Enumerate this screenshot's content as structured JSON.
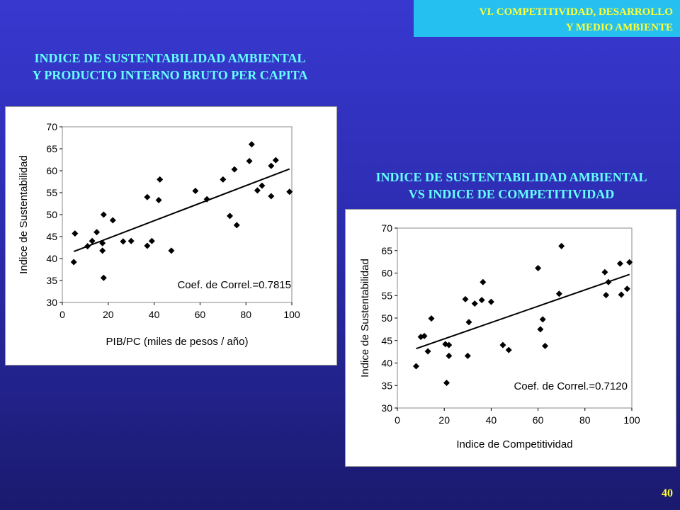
{
  "header": {
    "section_line1": "VI. COMPETITIVIDAD, DESARROLLO",
    "section_line2": "Y MEDIO AMBIENTE"
  },
  "heading_left": {
    "line1": "INDICE DE SUSTENTABILIDAD AMBIENTAL",
    "line2": "Y PRODUCTO INTERNO BRUTO PER CAPITA"
  },
  "heading_right": {
    "line1": "INDICE DE SUSTENTABILIDAD AMBIENTAL",
    "line2": "VS  INDICE DE COMPETITIVIDAD"
  },
  "page_number": "40",
  "colors": {
    "background": "#2c2cb0",
    "heading": "#66ffff",
    "accent": "#ffff33",
    "corner_box": "#26c0f0"
  },
  "chart_data": [
    {
      "type": "scatter",
      "xlabel": "PIB/PC (miles de pesos / año)",
      "ylabel": "Indice de Sustentabilidad",
      "xlim": [
        0,
        100
      ],
      "ylim": [
        30,
        70
      ],
      "xticks": [
        0,
        20,
        40,
        60,
        80,
        100
      ],
      "yticks": [
        30,
        35,
        40,
        45,
        50,
        55,
        60,
        65,
        70
      ],
      "annotation": "Coef. de Correl.=0.7815",
      "trendline": [
        [
          5,
          41.6
        ],
        [
          99,
          60.4
        ]
      ],
      "points": [
        [
          5,
          39.2
        ],
        [
          5.5,
          45.7
        ],
        [
          11,
          42.8
        ],
        [
          13,
          44
        ],
        [
          15,
          46
        ],
        [
          17.5,
          41.8
        ],
        [
          17.5,
          43.5
        ],
        [
          18,
          50
        ],
        [
          18,
          35.6
        ],
        [
          22,
          48.7
        ],
        [
          26.5,
          43.9
        ],
        [
          30,
          44
        ],
        [
          37,
          42.9
        ],
        [
          37,
          54
        ],
        [
          39,
          44
        ],
        [
          42,
          53.3
        ],
        [
          42.5,
          58
        ],
        [
          47.5,
          41.8
        ],
        [
          58,
          55.4
        ],
        [
          63,
          53.5
        ],
        [
          70,
          58
        ],
        [
          73,
          49.7
        ],
        [
          75,
          60.3
        ],
        [
          76,
          47.6
        ],
        [
          81.5,
          62.2
        ],
        [
          82.5,
          66
        ],
        [
          85,
          55.5
        ],
        [
          87,
          56.6
        ],
        [
          91,
          61.1
        ],
        [
          91,
          54.2
        ],
        [
          93,
          62.4
        ],
        [
          99,
          55.2
        ]
      ]
    },
    {
      "type": "scatter",
      "xlabel": "Indice de Competitividad",
      "ylabel": "Indice de Sustentabilidad",
      "xlim": [
        0,
        100
      ],
      "ylim": [
        30,
        70
      ],
      "xticks": [
        0,
        20,
        40,
        60,
        80,
        100
      ],
      "yticks": [
        30,
        35,
        40,
        45,
        50,
        55,
        60,
        65,
        70
      ],
      "annotation": "Coef. de Correl.=0.7120",
      "trendline": [
        [
          8,
          43.2
        ],
        [
          99,
          59.7
        ]
      ],
      "points": [
        [
          8,
          39.3
        ],
        [
          10,
          45.8
        ],
        [
          11.5,
          46
        ],
        [
          13,
          42.6
        ],
        [
          14.5,
          49.9
        ],
        [
          20.5,
          44.2
        ],
        [
          21,
          35.6
        ],
        [
          22,
          44
        ],
        [
          22,
          41.6
        ],
        [
          29,
          54.2
        ],
        [
          30,
          41.6
        ],
        [
          30.5,
          49.1
        ],
        [
          33,
          53.2
        ],
        [
          36,
          54
        ],
        [
          36.5,
          58
        ],
        [
          40,
          53.6
        ],
        [
          45,
          44
        ],
        [
          47.5,
          42.9
        ],
        [
          60,
          61.1
        ],
        [
          61,
          47.5
        ],
        [
          62,
          49.7
        ],
        [
          63,
          43.8
        ],
        [
          69,
          55.4
        ],
        [
          70,
          66
        ],
        [
          88.5,
          60.2
        ],
        [
          89,
          55.1
        ],
        [
          90,
          58
        ],
        [
          95,
          62.1
        ],
        [
          95.5,
          55.2
        ],
        [
          98,
          56.5
        ],
        [
          99,
          62.4
        ]
      ]
    }
  ]
}
